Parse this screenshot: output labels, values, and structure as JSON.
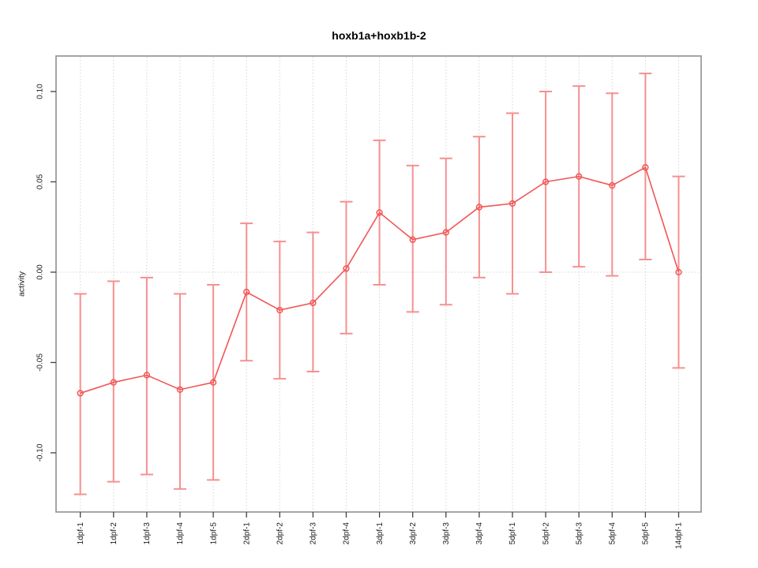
{
  "chart_data": {
    "type": "line",
    "subtype": "points-with-error-bars",
    "title": "hoxb1a+hoxb1b-2",
    "xlabel": "",
    "ylabel": "activity",
    "categories": [
      "1dpf-1",
      "1dpf-2",
      "1dpf-3",
      "1dpf-4",
      "1dpf-5",
      "2dpf-1",
      "2dpf-2",
      "2dpf-3",
      "2dpf-4",
      "3dpf-1",
      "3dpf-2",
      "3dpf-3",
      "3dpf-4",
      "5dpf-1",
      "5dpf-2",
      "5dpf-3",
      "5dpf-4",
      "5dpf-5",
      "14dpf-1"
    ],
    "series": [
      {
        "name": "hoxb1a+hoxb1b-2",
        "values": [
          -0.067,
          -0.061,
          -0.057,
          -0.065,
          -0.061,
          -0.011,
          -0.021,
          -0.017,
          0.002,
          0.033,
          0.018,
          0.022,
          0.036,
          0.038,
          0.05,
          0.053,
          0.048,
          0.058,
          0.0
        ],
        "lower": [
          -0.123,
          -0.116,
          -0.112,
          -0.12,
          -0.115,
          -0.049,
          -0.059,
          -0.055,
          -0.034,
          -0.007,
          -0.022,
          -0.018,
          -0.003,
          -0.012,
          0.0,
          0.003,
          -0.002,
          0.007,
          -0.053
        ],
        "upper": [
          -0.012,
          -0.005,
          -0.003,
          -0.012,
          -0.007,
          0.027,
          0.017,
          0.022,
          0.039,
          0.073,
          0.059,
          0.063,
          0.075,
          0.088,
          0.1,
          0.103,
          0.099,
          0.11,
          0.053
        ]
      }
    ],
    "yticks": [
      0.1,
      0.05,
      0.0,
      -0.05,
      -0.1
    ],
    "ytick_labels": [
      "0.10",
      "0.05",
      "0.00",
      "-0.05",
      "-0.10"
    ],
    "ylim": [
      -0.133,
      0.12
    ],
    "x_tick_label_rotation_deg": 90,
    "y_tick_label_rotation_deg": 90,
    "grid": {
      "vertical": "dotted line at every category",
      "horizontal": "dotted line at y = 0 only"
    },
    "legend": {
      "visible": false
    },
    "marker": "open-circle",
    "colors": {
      "series": "#f25555",
      "error_bar": "#f59090",
      "grid": "#d4d4d4",
      "axis_box": "#8f8f8f",
      "tick": "#404040",
      "label": "#1a1a1a",
      "background": "#ffffff"
    }
  }
}
